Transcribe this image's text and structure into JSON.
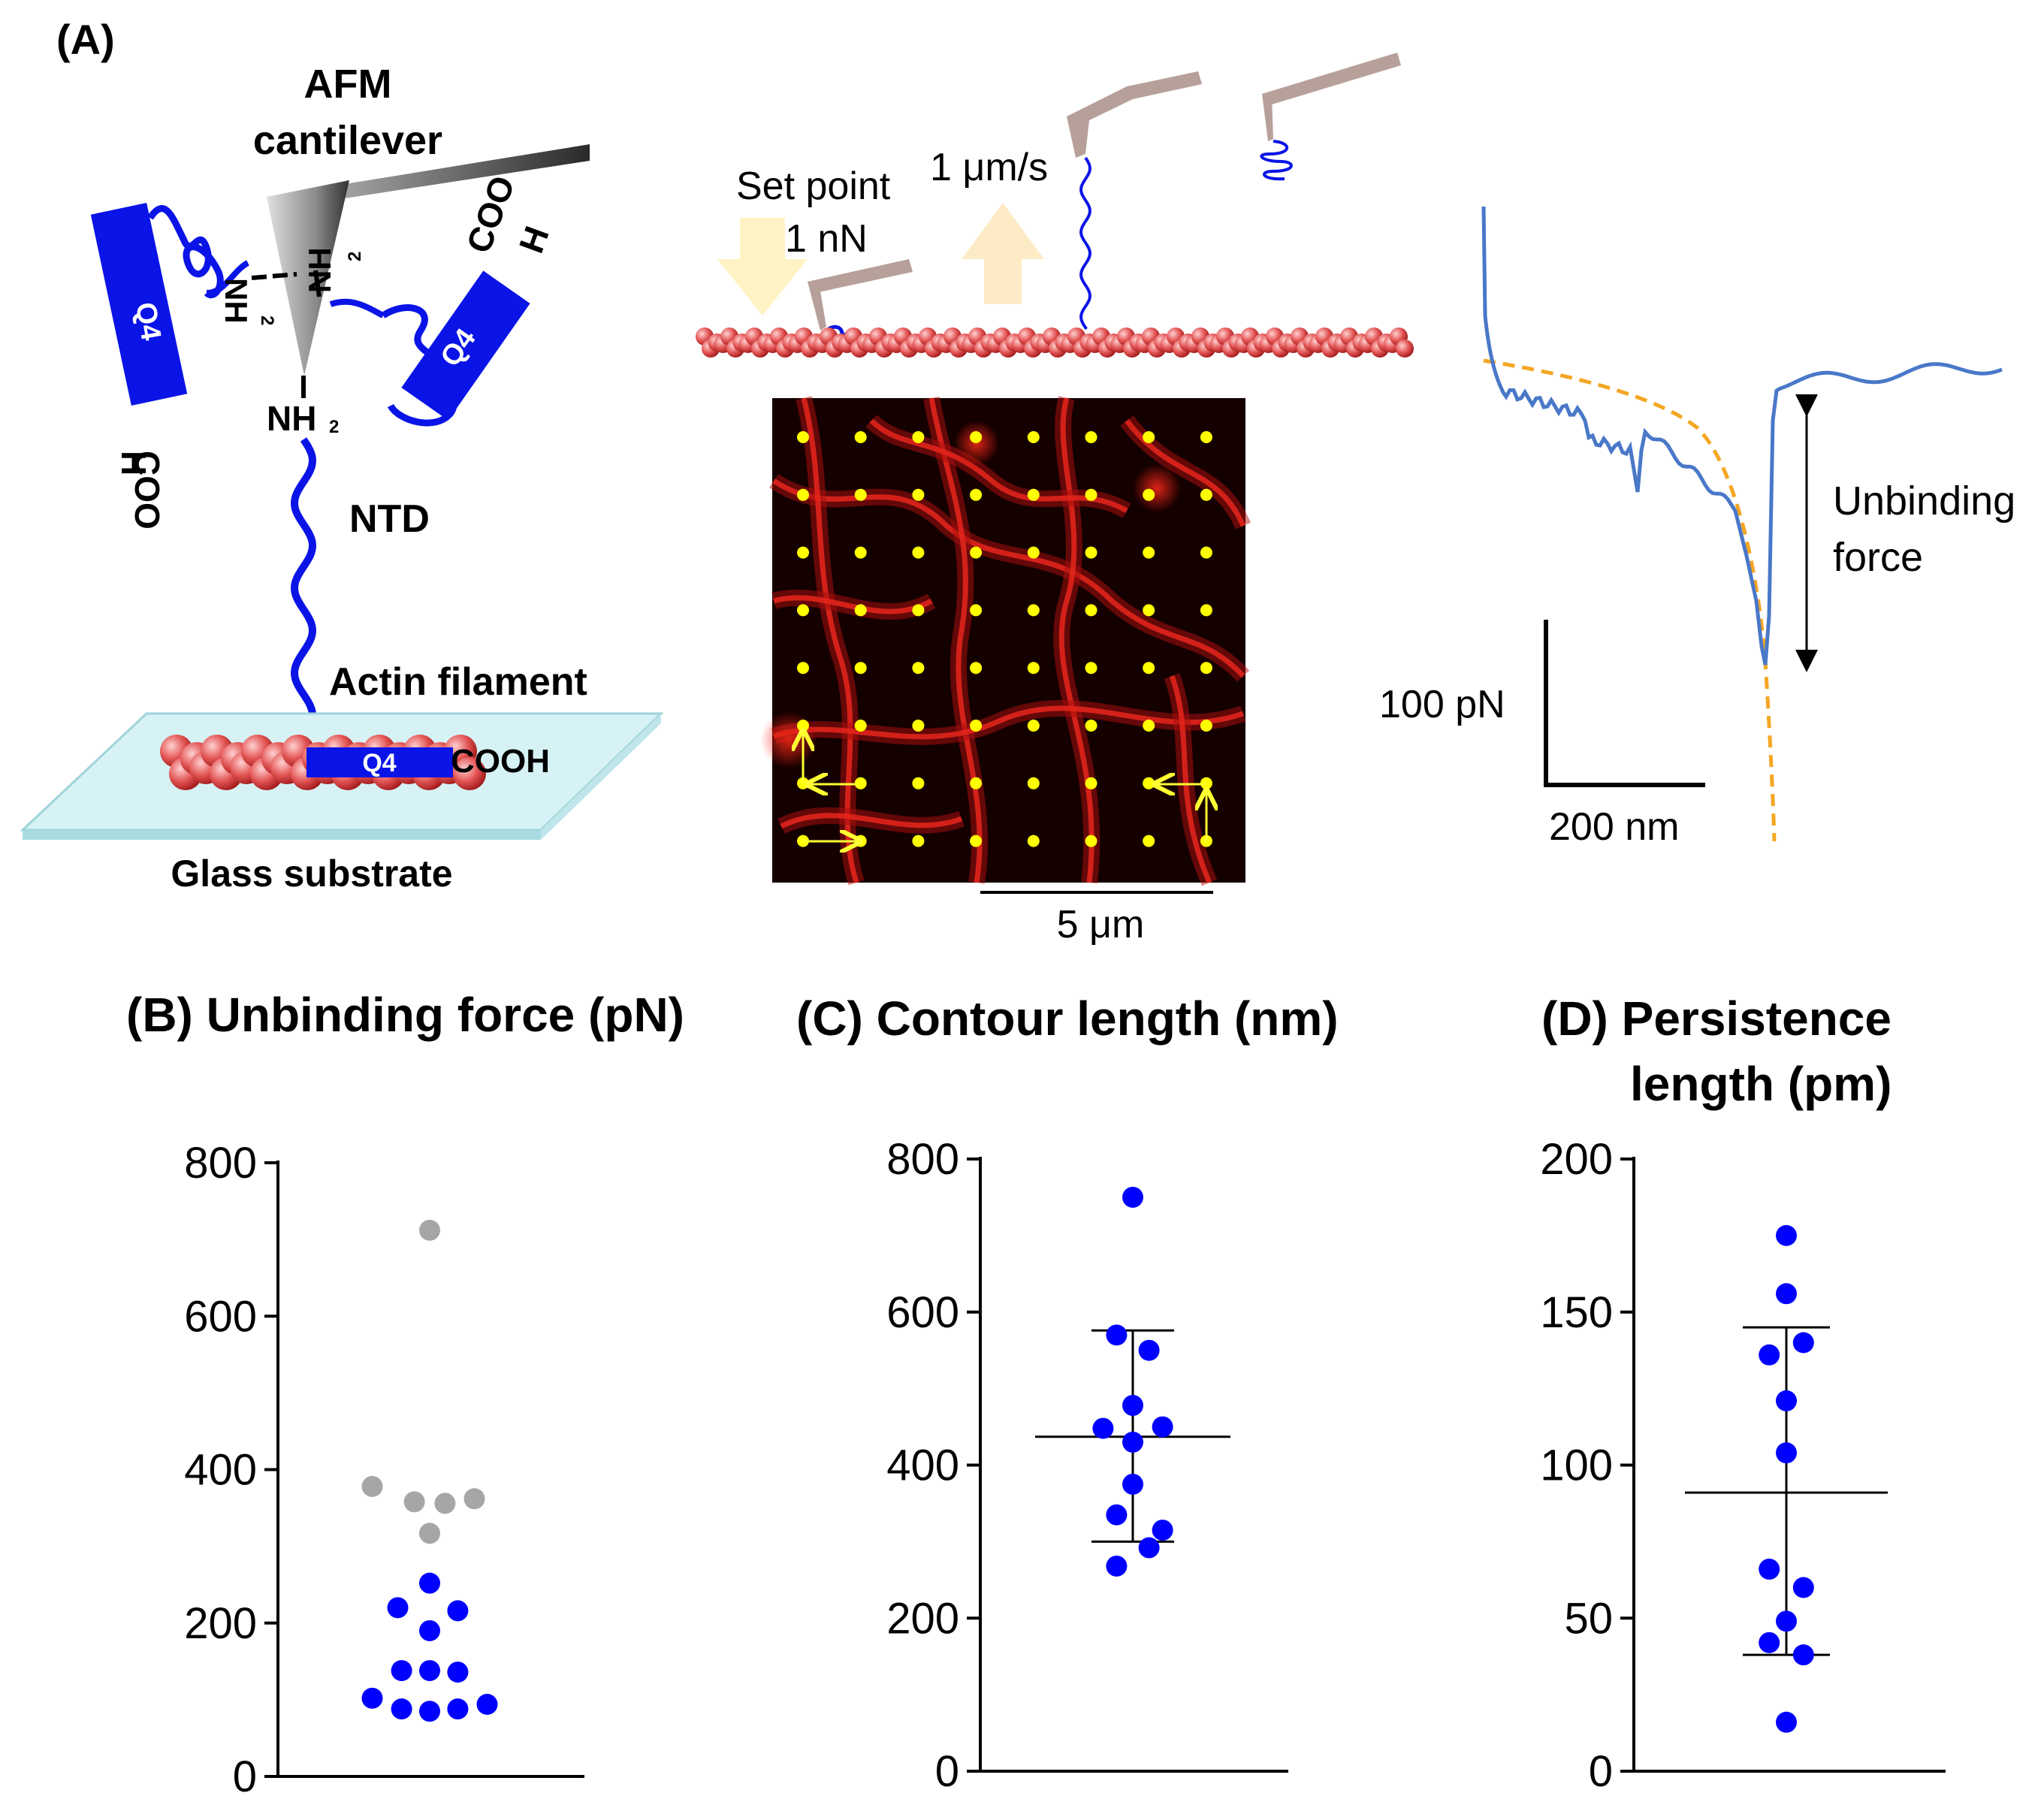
{
  "panel_a": {
    "label": "(A)",
    "afm_label_1": "AFM",
    "afm_label_2": "cantilever",
    "nh2": "NH",
    "nh2_sub": "2",
    "q4": "Q4",
    "coo": "COO",
    "h": "H",
    "ntd": "NTD",
    "actin": "Actin filament",
    "cooh": "COOH",
    "glass": "Glass substrate",
    "setpoint_1": "Set point",
    "setpoint_2": "1 nN",
    "speed": "1 μm/s",
    "scalebar": "5 μm",
    "unbinding_1": "Unbinding",
    "unbinding_2": "force",
    "scale_force": "100 pN",
    "scale_dist": "200 nm"
  },
  "chart_data": [
    {
      "type": "scatter",
      "panel": "(B)",
      "title": "(B) Unbinding force (pN)",
      "ylim": [
        0,
        800
      ],
      "yticks": [
        "0",
        "200",
        "400",
        "600",
        "800"
      ],
      "series": [
        {
          "name": "gray",
          "color": "#a6a6a6",
          "points": [
            [
              0,
              712
            ],
            [
              -0.45,
              378
            ],
            [
              -0.12,
              358
            ],
            [
              0.12,
              356
            ],
            [
              0.35,
              362
            ],
            [
              0,
              317
            ]
          ]
        },
        {
          "name": "blue",
          "color": "#0000ff",
          "points": [
            [
              0,
              252
            ],
            [
              -0.25,
              220
            ],
            [
              0.22,
              216
            ],
            [
              0,
              190
            ],
            [
              -0.22,
              138
            ],
            [
              0,
              138
            ],
            [
              0.22,
              136
            ],
            [
              -0.45,
              102
            ],
            [
              -0.22,
              88
            ],
            [
              0,
              85
            ],
            [
              0.22,
              88
            ],
            [
              0.45,
              94
            ]
          ]
        }
      ],
      "mean": null,
      "sd": null
    },
    {
      "type": "scatter",
      "panel": "(C)",
      "title": "(C) Contour length (nm)",
      "ylim": [
        0,
        800
      ],
      "yticks": [
        "0",
        "200",
        "400",
        "600",
        "800"
      ],
      "series": [
        {
          "name": "blue",
          "color": "#0000ff",
          "points": [
            [
              0,
              750
            ],
            [
              -0.12,
              570
            ],
            [
              0.12,
              550
            ],
            [
              0,
              478
            ],
            [
              -0.22,
              448
            ],
            [
              0.22,
              450
            ],
            [
              0,
              430
            ],
            [
              0,
              375
            ],
            [
              -0.12,
              335
            ],
            [
              0.22,
              315
            ],
            [
              0.12,
              292
            ],
            [
              -0.12,
              268
            ]
          ]
        }
      ],
      "mean": 437,
      "sd_low": 300,
      "sd_high": 576
    },
    {
      "type": "scatter",
      "panel": "(D)",
      "title_1": "(D) Persistence",
      "title_2": "length (pm)",
      "ylim": [
        0,
        200
      ],
      "yticks": [
        "0",
        "50",
        "100",
        "150",
        "200"
      ],
      "series": [
        {
          "name": "blue",
          "color": "#0000ff",
          "points": [
            [
              0,
              175
            ],
            [
              0,
              156
            ],
            [
              0.12,
              140
            ],
            [
              -0.12,
              136
            ],
            [
              0,
              121
            ],
            [
              0,
              104
            ],
            [
              -0.12,
              66
            ],
            [
              0.12,
              60
            ],
            [
              0,
              49
            ],
            [
              -0.12,
              42
            ],
            [
              0.12,
              38
            ],
            [
              0,
              16
            ]
          ]
        }
      ],
      "mean": 91,
      "sd_low": 38,
      "sd_high": 145
    }
  ]
}
